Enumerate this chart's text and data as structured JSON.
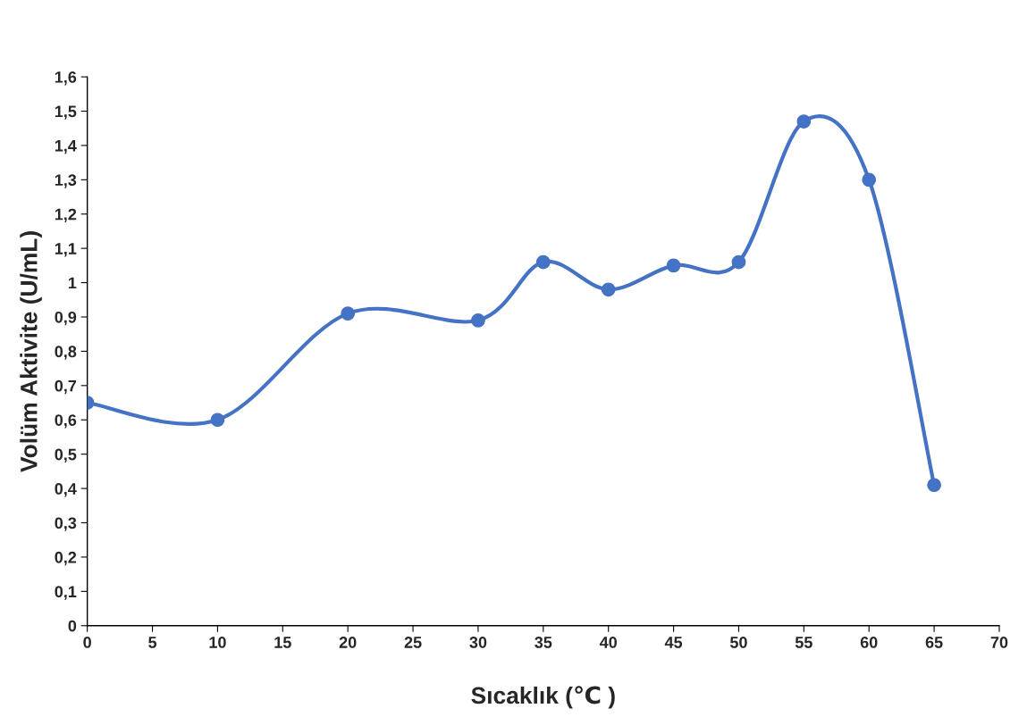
{
  "chart_data": {
    "type": "line",
    "xlabel": "Sıcaklık (℃ )",
    "ylabel": "Volüm Aktivite (U/mL)",
    "x": [
      0,
      10,
      20,
      30,
      35,
      40,
      45,
      50,
      55,
      60,
      65
    ],
    "series": [
      {
        "color": "#4472c4",
        "values": [
          0.65,
          0.6,
          0.91,
          0.89,
          1.06,
          0.98,
          1.05,
          1.06,
          1.47,
          1.3,
          0.41
        ]
      }
    ],
    "xlim": [
      0,
      70
    ],
    "xticks": [
      0,
      5,
      10,
      15,
      20,
      25,
      30,
      35,
      40,
      45,
      50,
      55,
      60,
      65,
      70
    ],
    "ylim": [
      0,
      1.6
    ],
    "yticks": [
      0,
      {
        "value": 0.1,
        "label": "0,1"
      },
      {
        "value": 0.2,
        "label": "0,2"
      },
      {
        "value": 0.3,
        "label": "0,3"
      },
      {
        "value": 0.4,
        "label": "0,4"
      },
      {
        "value": 0.5,
        "label": "0,5"
      },
      {
        "value": 0.6,
        "label": "0,6"
      },
      {
        "value": 0.7,
        "label": "0,7"
      },
      {
        "value": 0.8,
        "label": "0,8"
      },
      {
        "value": 0.9,
        "label": "0,9"
      },
      1,
      {
        "value": 1.1,
        "label": "1,1"
      },
      {
        "value": 1.2,
        "label": "1,2"
      },
      {
        "value": 1.3,
        "label": "1,3"
      },
      {
        "value": 1.4,
        "label": "1,4"
      },
      {
        "value": 1.5,
        "label": "1,5"
      },
      {
        "value": 1.6,
        "label": "1,6"
      }
    ],
    "grid": false,
    "legend": false,
    "marker": "circle",
    "line_style": "solid"
  }
}
